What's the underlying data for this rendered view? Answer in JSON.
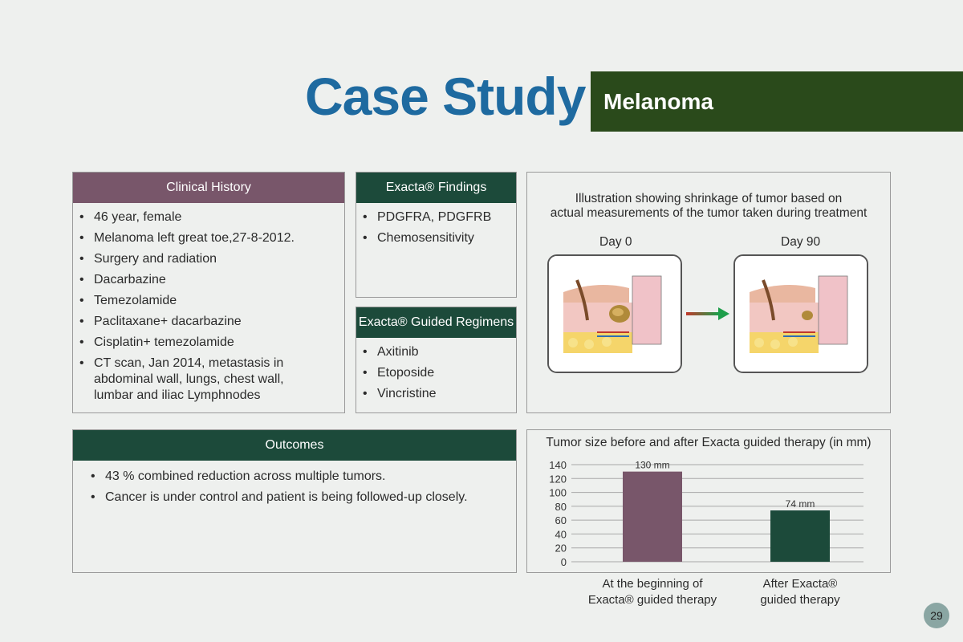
{
  "header": {
    "title": "Case Study",
    "subtitle": "Melanoma"
  },
  "clinical_history": {
    "heading": "Clinical History",
    "items": [
      "46 year, female",
      "Melanoma left great toe,27-8-2012.",
      "Surgery and radiation",
      "Dacarbazine",
      "Temezolamide",
      "Paclitaxane+ dacarbazine",
      "Cisplatin+ temezolamide",
      "CT scan, Jan 2014, metastasis in abdominal wall, lungs, chest wall, lumbar and iliac Lymphnodes"
    ]
  },
  "findings": {
    "heading": "Exacta® Findings",
    "items": [
      "PDGFRA, PDGFRB",
      "Chemosensitivity"
    ]
  },
  "regimens": {
    "heading": "Exacta® Guided Regimens",
    "items": [
      "Axitinib",
      "Etoposide",
      "Vincristine"
    ]
  },
  "illustration": {
    "caption_line1": "Illustration showing shrinkage of tumor based on",
    "caption_line2": "actual measurements of the tumor taken during treatment",
    "day0_label": "Day 0",
    "day90_label": "Day 90",
    "colors": {
      "arrow_start": "#c0392b",
      "arrow_end": "#1e9e4a"
    }
  },
  "outcomes": {
    "heading": "Outcomes",
    "items": [
      "43 % combined reduction across multiple tumors.",
      "Cancer is under control and patient is being followed-up closely."
    ]
  },
  "chart_data": {
    "type": "bar",
    "title": "Tumor size before and after Exacta guided therapy (in mm)",
    "categories": [
      "At the beginning of Exacta® guided therapy",
      "After Exacta® guided therapy"
    ],
    "category_lines": [
      [
        "At the beginning of",
        "Exacta® guided therapy"
      ],
      [
        "After Exacta®",
        "guided therapy"
      ]
    ],
    "values": [
      130,
      74
    ],
    "data_labels": [
      "130 mm",
      "74 mm"
    ],
    "colors": [
      "#78566a",
      "#1c4a3a"
    ],
    "yticks": [
      0,
      20,
      40,
      60,
      80,
      100,
      120,
      140
    ],
    "ylim": [
      0,
      140
    ],
    "grid": true
  },
  "page_number": "29"
}
